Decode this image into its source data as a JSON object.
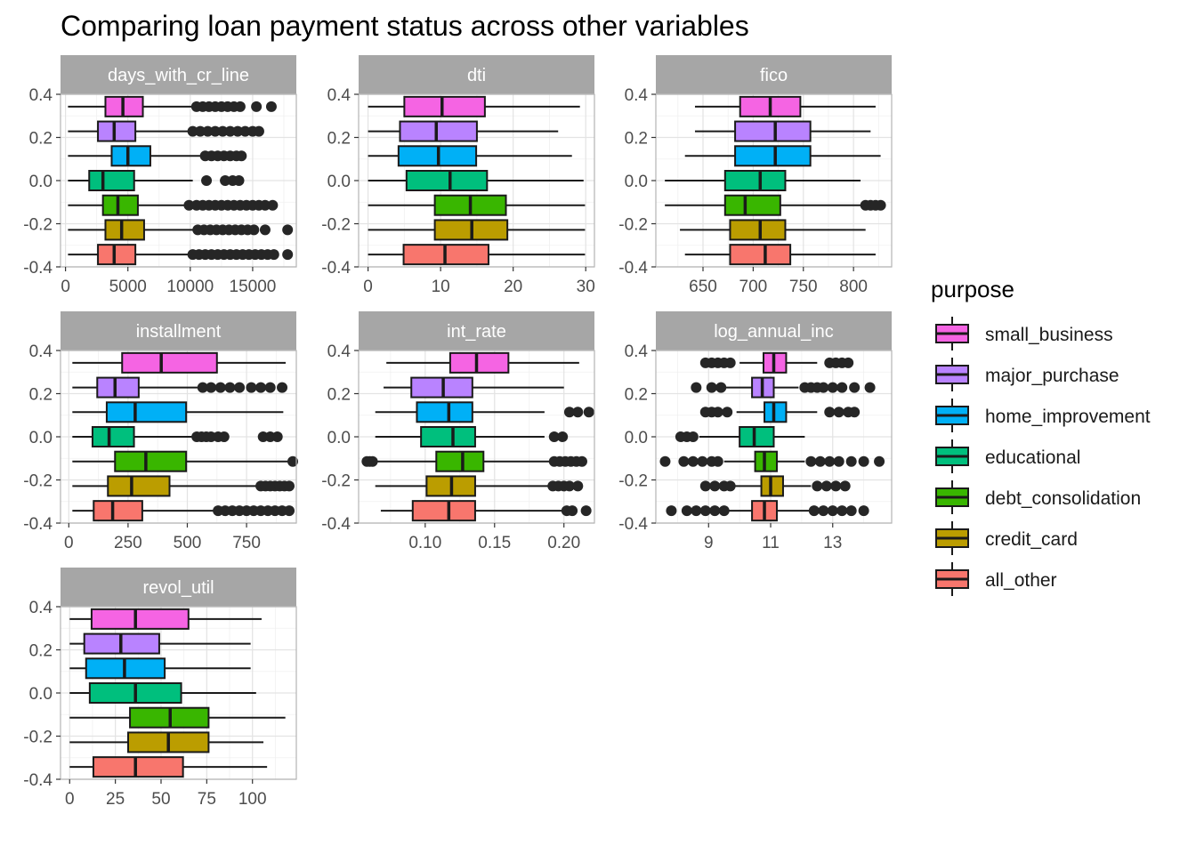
{
  "chart_data": {
    "type": "boxplot",
    "title": "Comparing loan payment status across other variables",
    "orientation": "horizontal",
    "y_axis": {
      "ylim": [
        -0.4,
        0.4
      ],
      "ticks": [
        0.4,
        0.2,
        0.0,
        -0.2,
        -0.4
      ],
      "tick_labels": [
        "0.4",
        "0.2",
        "0.0",
        "-0.2",
        "-0.4"
      ]
    },
    "legend": {
      "title": "purpose",
      "placement": "right",
      "entries": [
        {
          "name": "small_business",
          "color": "#F564E3"
        },
        {
          "name": "major_purchase",
          "color": "#B983FF"
        },
        {
          "name": "home_improvement",
          "color": "#00B0F6"
        },
        {
          "name": "educational",
          "color": "#00BF7D"
        },
        {
          "name": "debt_consolidation",
          "color": "#39B600"
        },
        {
          "name": "credit_card",
          "color": "#BB9D00"
        },
        {
          "name": "all_other",
          "color": "#F8766D"
        }
      ]
    },
    "grid": true,
    "panels": [
      {
        "name": "days_with_cr_line",
        "xlim": [
          -400,
          18500
        ],
        "x_ticks": [
          0,
          5000,
          10000,
          15000
        ],
        "x_tick_labels": [
          "0",
          "5000",
          "10000",
          "15000"
        ],
        "boxes": [
          {
            "group": "small_business",
            "whisker_low": 200,
            "q1": 3200,
            "median": 4600,
            "q3": 6200,
            "whisker_high": 10300,
            "outliers": [
              10500,
              11000,
              11500,
              12000,
              12500,
              13000,
              13500,
              14000,
              15300,
              16500
            ]
          },
          {
            "group": "major_purchase",
            "whisker_low": 200,
            "q1": 2600,
            "median": 3900,
            "q3": 5600,
            "whisker_high": 10000,
            "outliers": [
              10200,
              10800,
              11400,
              12000,
              12600,
              13200,
              13800,
              14400,
              15000,
              15500
            ]
          },
          {
            "group": "home_improvement",
            "whisker_low": 200,
            "q1": 3700,
            "median": 5000,
            "q3": 6800,
            "whisker_high": 11000,
            "outliers": [
              11200,
              11700,
              12200,
              12700,
              13200,
              13700,
              14100
            ]
          },
          {
            "group": "educational",
            "whisker_low": 200,
            "q1": 1900,
            "median": 3000,
            "q3": 5500,
            "whisker_high": 10200,
            "outliers": [
              11300,
              12800,
              13400,
              13900
            ]
          },
          {
            "group": "debt_consolidation",
            "whisker_low": 200,
            "q1": 3000,
            "median": 4200,
            "q3": 5800,
            "whisker_high": 9700,
            "outliers": [
              9900,
              10500,
              11000,
              11500,
              12000,
              12500,
              13000,
              13500,
              14000,
              14500,
              15000,
              15500,
              16000,
              16600
            ]
          },
          {
            "group": "credit_card",
            "whisker_low": 200,
            "q1": 3200,
            "median": 4500,
            "q3": 6300,
            "whisker_high": 10400,
            "outliers": [
              10600,
              11100,
              11600,
              12100,
              12600,
              13100,
              13600,
              14100,
              14600,
              15100,
              16000,
              17800
            ]
          },
          {
            "group": "all_other",
            "whisker_low": 200,
            "q1": 2600,
            "median": 3900,
            "q3": 5600,
            "whisker_high": 10000,
            "outliers": [
              10200,
              10700,
              11200,
              11700,
              12200,
              12700,
              13200,
              13700,
              14200,
              14700,
              15200,
              15700,
              16200,
              16700,
              17800
            ]
          }
        ]
      },
      {
        "name": "dti",
        "xlim": [
          -1.3,
          31.2
        ],
        "x_ticks": [
          0,
          10,
          20,
          30
        ],
        "x_tick_labels": [
          "0",
          "10",
          "20",
          "30"
        ],
        "boxes": [
          {
            "group": "small_business",
            "whisker_low": 0,
            "q1": 5.0,
            "median": 10.2,
            "q3": 16.1,
            "whisker_high": 29.2,
            "outliers": []
          },
          {
            "group": "major_purchase",
            "whisker_low": 0,
            "q1": 4.4,
            "median": 9.4,
            "q3": 15.0,
            "whisker_high": 26.2,
            "outliers": []
          },
          {
            "group": "home_improvement",
            "whisker_low": 0,
            "q1": 4.2,
            "median": 9.7,
            "q3": 14.9,
            "whisker_high": 28.1,
            "outliers": []
          },
          {
            "group": "educational",
            "whisker_low": 0,
            "q1": 5.3,
            "median": 11.3,
            "q3": 16.4,
            "whisker_high": 29.7,
            "outliers": []
          },
          {
            "group": "debt_consolidation",
            "whisker_low": 0,
            "q1": 9.2,
            "median": 14.1,
            "q3": 19.0,
            "whisker_high": 29.9,
            "outliers": []
          },
          {
            "group": "credit_card",
            "whisker_low": 0,
            "q1": 9.2,
            "median": 14.3,
            "q3": 19.2,
            "whisker_high": 29.9,
            "outliers": []
          },
          {
            "group": "all_other",
            "whisker_low": 0,
            "q1": 4.9,
            "median": 10.6,
            "q3": 16.6,
            "whisker_high": 29.9,
            "outliers": []
          }
        ]
      },
      {
        "name": "fico",
        "xlim": [
          603,
          838
        ],
        "x_ticks": [
          650,
          700,
          750,
          800
        ],
        "x_tick_labels": [
          "650",
          "700",
          "750",
          "800"
        ],
        "boxes": [
          {
            "group": "small_business",
            "whisker_low": 642,
            "q1": 687,
            "median": 717,
            "q3": 747,
            "whisker_high": 822,
            "outliers": []
          },
          {
            "group": "major_purchase",
            "whisker_low": 642,
            "q1": 682,
            "median": 722,
            "q3": 757,
            "whisker_high": 817,
            "outliers": []
          },
          {
            "group": "home_improvement",
            "whisker_low": 632,
            "q1": 682,
            "median": 722,
            "q3": 757,
            "whisker_high": 827,
            "outliers": []
          },
          {
            "group": "educational",
            "whisker_low": 612,
            "q1": 672,
            "median": 707,
            "q3": 732,
            "whisker_high": 807,
            "outliers": []
          },
          {
            "group": "debt_consolidation",
            "whisker_low": 612,
            "q1": 672,
            "median": 692,
            "q3": 727,
            "whisker_high": 807,
            "outliers": [
              812,
              817,
              822,
              827
            ]
          },
          {
            "group": "credit_card",
            "whisker_low": 627,
            "q1": 677,
            "median": 707,
            "q3": 732,
            "whisker_high": 812,
            "outliers": []
          },
          {
            "group": "all_other",
            "whisker_low": 632,
            "q1": 677,
            "median": 712,
            "q3": 737,
            "whisker_high": 822,
            "outliers": []
          }
        ]
      },
      {
        "name": "installment",
        "xlim": [
          -35,
          960
        ],
        "x_ticks": [
          0,
          250,
          500,
          750
        ],
        "x_tick_labels": [
          "0",
          "250",
          "500",
          "750"
        ],
        "boxes": [
          {
            "group": "small_business",
            "whisker_low": 15,
            "q1": 225,
            "median": 390,
            "q3": 625,
            "whisker_high": 915,
            "outliers": []
          },
          {
            "group": "major_purchase",
            "whisker_low": 15,
            "q1": 120,
            "median": 195,
            "q3": 295,
            "whisker_high": 555,
            "outliers": [
              565,
              600,
              640,
              680,
              720,
              770,
              810,
              850,
              900
            ]
          },
          {
            "group": "home_improvement",
            "whisker_low": 15,
            "q1": 160,
            "median": 280,
            "q3": 495,
            "whisker_high": 905,
            "outliers": []
          },
          {
            "group": "educational",
            "whisker_low": 15,
            "q1": 100,
            "median": 170,
            "q3": 275,
            "whisker_high": 530,
            "outliers": [
              540,
              560,
              580,
              600,
              630,
              655,
              820,
              850,
              880
            ]
          },
          {
            "group": "debt_consolidation",
            "whisker_low": 15,
            "q1": 195,
            "median": 325,
            "q3": 495,
            "whisker_high": 930,
            "outliers": [
              945
            ]
          },
          {
            "group": "credit_card",
            "whisker_low": 15,
            "q1": 165,
            "median": 265,
            "q3": 425,
            "whisker_high": 800,
            "outliers": [
              810,
              830,
              850,
              870,
              890,
              910,
              930
            ]
          },
          {
            "group": "all_other",
            "whisker_low": 15,
            "q1": 105,
            "median": 185,
            "q3": 310,
            "whisker_high": 615,
            "outliers": [
              630,
              660,
              690,
              720,
              750,
              780,
              810,
              840,
              870,
              900,
              930
            ]
          }
        ]
      },
      {
        "name": "int_rate",
        "xlim": [
          0.052,
          0.222
        ],
        "x_ticks": [
          0.1,
          0.15,
          0.2
        ],
        "x_tick_labels": [
          "0.10",
          "0.15",
          "0.20"
        ],
        "boxes": [
          {
            "group": "small_business",
            "whisker_low": 0.072,
            "q1": 0.118,
            "median": 0.137,
            "q3": 0.16,
            "whisker_high": 0.211,
            "outliers": []
          },
          {
            "group": "major_purchase",
            "whisker_low": 0.07,
            "q1": 0.09,
            "median": 0.113,
            "q3": 0.134,
            "whisker_high": 0.2,
            "outliers": []
          },
          {
            "group": "home_improvement",
            "whisker_low": 0.064,
            "q1": 0.094,
            "median": 0.117,
            "q3": 0.134,
            "whisker_high": 0.186,
            "outliers": [
              0.204,
              0.21,
              0.218
            ]
          },
          {
            "group": "educational",
            "whisker_low": 0.064,
            "q1": 0.097,
            "median": 0.12,
            "q3": 0.136,
            "whisker_high": 0.186,
            "outliers": [
              0.193,
              0.199
            ]
          },
          {
            "group": "debt_consolidation",
            "whisker_low": 0.064,
            "q1": 0.108,
            "median": 0.127,
            "q3": 0.142,
            "whisker_high": 0.19,
            "outliers": [
              0.058,
              0.06,
              0.062,
              0.193,
              0.197,
              0.201,
              0.205,
              0.209,
              0.213
            ]
          },
          {
            "group": "credit_card",
            "whisker_low": 0.064,
            "q1": 0.101,
            "median": 0.119,
            "q3": 0.136,
            "whisker_high": 0.19,
            "outliers": [
              0.192,
              0.196,
              0.2,
              0.204,
              0.21
            ]
          },
          {
            "group": "all_other",
            "whisker_low": 0.068,
            "q1": 0.091,
            "median": 0.117,
            "q3": 0.136,
            "whisker_high": 0.199,
            "outliers": [
              0.202,
              0.206,
              0.216
            ]
          }
        ]
      },
      {
        "name": "log_annual_inc",
        "xlim": [
          7.3,
          14.9
        ],
        "x_ticks": [
          9,
          11,
          13
        ],
        "x_tick_labels": [
          "9",
          "11",
          "13"
        ],
        "boxes": [
          {
            "group": "small_business",
            "whisker_low": 10.0,
            "q1": 10.77,
            "median": 11.1,
            "q3": 11.5,
            "whisker_high": 12.5,
            "outliers": [
              8.9,
              9.1,
              9.3,
              9.5,
              9.7,
              12.9,
              13.1,
              13.3,
              13.5
            ]
          },
          {
            "group": "major_purchase",
            "whisker_low": 9.5,
            "q1": 10.4,
            "median": 10.73,
            "q3": 11.1,
            "whisker_high": 11.9,
            "outliers": [
              8.6,
              9.1,
              9.4,
              12.1,
              12.3,
              12.5,
              12.7,
              13.0,
              13.3,
              13.7,
              14.2
            ]
          },
          {
            "group": "home_improvement",
            "whisker_low": 9.9,
            "q1": 10.8,
            "median": 11.1,
            "q3": 11.5,
            "whisker_high": 12.5,
            "outliers": [
              8.9,
              9.1,
              9.3,
              9.6,
              12.9,
              13.2,
              13.5,
              13.7
            ]
          },
          {
            "group": "educational",
            "whisker_low": 8.7,
            "q1": 10.0,
            "median": 10.47,
            "q3": 11.1,
            "whisker_high": 12.1,
            "outliers": [
              8.1,
              8.3,
              8.5
            ]
          },
          {
            "group": "debt_consolidation",
            "whisker_low": 9.5,
            "q1": 10.5,
            "median": 10.8,
            "q3": 11.2,
            "whisker_high": 12.1,
            "outliers": [
              7.6,
              8.2,
              8.5,
              8.8,
              9.1,
              9.3,
              12.3,
              12.6,
              12.9,
              13.2,
              13.6,
              14.0,
              14.5
            ]
          },
          {
            "group": "credit_card",
            "whisker_low": 9.8,
            "q1": 10.7,
            "median": 11.0,
            "q3": 11.4,
            "whisker_high": 12.3,
            "outliers": [
              8.9,
              9.2,
              9.5,
              9.7,
              12.5,
              12.8,
              13.1,
              13.4
            ]
          },
          {
            "group": "all_other",
            "whisker_low": 9.6,
            "q1": 10.4,
            "median": 10.8,
            "q3": 11.2,
            "whisker_high": 12.3,
            "outliers": [
              7.8,
              8.3,
              8.6,
              8.9,
              9.2,
              9.5,
              12.4,
              12.7,
              13.0,
              13.3,
              13.6,
              14.0
            ]
          }
        ]
      },
      {
        "name": "revol_util",
        "xlim": [
          -5,
          124
        ],
        "x_ticks": [
          0,
          25,
          50,
          75,
          100
        ],
        "x_tick_labels": [
          "0",
          "25",
          "50",
          "75",
          "100"
        ],
        "boxes": [
          {
            "group": "small_business",
            "whisker_low": 0,
            "q1": 12,
            "median": 36,
            "q3": 65,
            "whisker_high": 105,
            "outliers": []
          },
          {
            "group": "major_purchase",
            "whisker_low": 0,
            "q1": 8,
            "median": 28,
            "q3": 49,
            "whisker_high": 99,
            "outliers": []
          },
          {
            "group": "home_improvement",
            "whisker_low": 0,
            "q1": 9,
            "median": 30,
            "q3": 52,
            "whisker_high": 99,
            "outliers": []
          },
          {
            "group": "educational",
            "whisker_low": 0,
            "q1": 11,
            "median": 36,
            "q3": 61,
            "whisker_high": 102,
            "outliers": []
          },
          {
            "group": "debt_consolidation",
            "whisker_low": 0,
            "q1": 33,
            "median": 55,
            "q3": 76,
            "whisker_high": 118,
            "outliers": []
          },
          {
            "group": "credit_card",
            "whisker_low": 0,
            "q1": 32,
            "median": 54,
            "q3": 76,
            "whisker_high": 106,
            "outliers": []
          },
          {
            "group": "all_other",
            "whisker_low": 0,
            "q1": 13,
            "median": 36,
            "q3": 62,
            "whisker_high": 108,
            "outliers": []
          }
        ]
      }
    ]
  }
}
